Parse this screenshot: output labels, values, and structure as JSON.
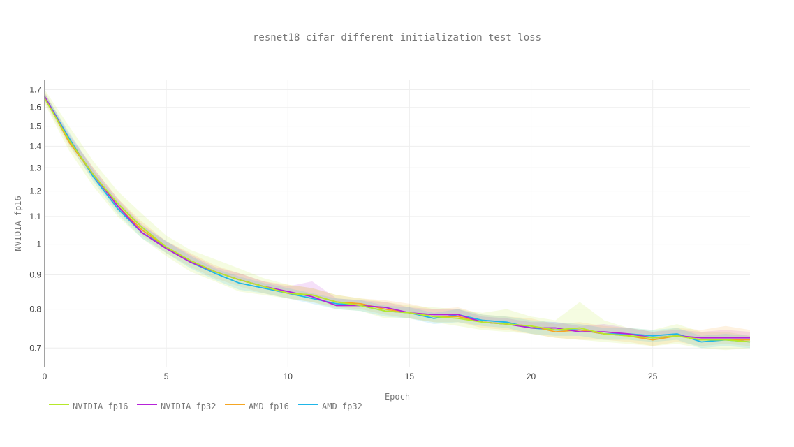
{
  "chart_data": {
    "type": "line",
    "title": "resnet18_cifar_different_initialization_test_loss",
    "xlabel": "Epoch",
    "ylabel": "NVIDIA fp16",
    "y_scale": "log",
    "xlim": [
      0,
      29
    ],
    "ylim": [
      0.655,
      1.76
    ],
    "x_ticks": [
      0,
      5,
      10,
      15,
      20,
      25
    ],
    "y_ticks": [
      0.7,
      0.8,
      0.9,
      1,
      1.1,
      1.2,
      1.3,
      1.4,
      1.5,
      1.6,
      1.7
    ],
    "y_tick_labels": [
      "0.7",
      "0.8",
      "0.9",
      "1",
      "1.1",
      "1.2",
      "1.3",
      "1.4",
      "1.5",
      "1.6",
      "1.7"
    ],
    "grid": true,
    "legend_position": "bottom-left",
    "x": [
      0,
      1,
      2,
      3,
      4,
      5,
      6,
      7,
      8,
      9,
      10,
      11,
      12,
      13,
      14,
      15,
      16,
      17,
      18,
      19,
      20,
      21,
      22,
      23,
      24,
      25,
      26,
      27,
      28,
      29
    ],
    "series": [
      {
        "name": "NVIDIA fp16",
        "color": "#b6e82a",
        "values": [
          1.65,
          1.43,
          1.27,
          1.15,
          1.06,
          0.99,
          0.945,
          0.91,
          0.885,
          0.865,
          0.845,
          0.84,
          0.82,
          0.81,
          0.795,
          0.79,
          0.78,
          0.775,
          0.765,
          0.76,
          0.755,
          0.745,
          0.75,
          0.735,
          0.73,
          0.725,
          0.73,
          0.72,
          0.72,
          0.715
        ],
        "upper": [
          1.7,
          1.5,
          1.33,
          1.2,
          1.11,
          1.03,
          0.98,
          0.95,
          0.92,
          0.89,
          0.87,
          0.86,
          0.84,
          0.83,
          0.82,
          0.81,
          0.805,
          0.8,
          0.79,
          0.8,
          0.78,
          0.77,
          0.82,
          0.77,
          0.75,
          0.745,
          0.76,
          0.74,
          0.74,
          0.73
        ],
        "lower": [
          1.62,
          1.38,
          1.22,
          1.1,
          1.02,
          0.96,
          0.91,
          0.88,
          0.85,
          0.84,
          0.83,
          0.82,
          0.8,
          0.795,
          0.775,
          0.775,
          0.765,
          0.755,
          0.745,
          0.74,
          0.735,
          0.725,
          0.72,
          0.715,
          0.71,
          0.705,
          0.71,
          0.7,
          0.695,
          0.7
        ]
      },
      {
        "name": "NVIDIA fp32",
        "color": "#b622d8",
        "values": [
          1.66,
          1.43,
          1.27,
          1.14,
          1.04,
          0.985,
          0.94,
          0.91,
          0.885,
          0.865,
          0.85,
          0.835,
          0.81,
          0.81,
          0.805,
          0.79,
          0.785,
          0.785,
          0.765,
          0.76,
          0.75,
          0.75,
          0.74,
          0.74,
          0.735,
          0.725,
          0.73,
          0.725,
          0.725,
          0.725
        ],
        "upper": [
          1.68,
          1.46,
          1.3,
          1.17,
          1.07,
          1.01,
          0.965,
          0.925,
          0.905,
          0.88,
          0.865,
          0.88,
          0.83,
          0.825,
          0.82,
          0.805,
          0.8,
          0.8,
          0.78,
          0.775,
          0.765,
          0.765,
          0.755,
          0.76,
          0.75,
          0.74,
          0.745,
          0.74,
          0.745,
          0.74
        ]
      },
      {
        "name": "AMD fp16",
        "color": "#f5a623",
        "values": [
          1.66,
          1.42,
          1.27,
          1.14,
          1.05,
          0.99,
          0.945,
          0.91,
          0.885,
          0.865,
          0.845,
          0.84,
          0.82,
          0.815,
          0.8,
          0.79,
          0.78,
          0.78,
          0.765,
          0.76,
          0.755,
          0.74,
          0.745,
          0.735,
          0.73,
          0.72,
          0.73,
          0.72,
          0.72,
          0.72
        ],
        "upper": [
          1.69,
          1.45,
          1.3,
          1.17,
          1.08,
          1.01,
          0.97,
          0.93,
          0.905,
          0.88,
          0.87,
          0.86,
          0.84,
          0.83,
          0.825,
          0.815,
          0.8,
          0.805,
          0.785,
          0.78,
          0.775,
          0.76,
          0.765,
          0.755,
          0.75,
          0.74,
          0.75,
          0.745,
          0.755,
          0.745
        ],
        "lower": [
          1.63,
          1.4,
          1.25,
          1.12,
          1.03,
          0.97,
          0.925,
          0.89,
          0.865,
          0.845,
          0.83,
          0.82,
          0.805,
          0.8,
          0.785,
          0.775,
          0.765,
          0.765,
          0.75,
          0.745,
          0.735,
          0.725,
          0.72,
          0.72,
          0.715,
          0.705,
          0.715,
          0.705,
          0.71,
          0.705
        ]
      },
      {
        "name": "AMD fp32",
        "color": "#1fb6e8",
        "values": [
          1.66,
          1.44,
          1.26,
          1.13,
          1.04,
          0.99,
          0.94,
          0.905,
          0.875,
          0.86,
          0.845,
          0.83,
          0.815,
          0.81,
          0.795,
          0.79,
          0.775,
          0.785,
          0.77,
          0.765,
          0.75,
          0.745,
          0.745,
          0.735,
          0.735,
          0.73,
          0.735,
          0.715,
          0.72,
          0.715
        ],
        "upper": [
          1.68,
          1.47,
          1.29,
          1.16,
          1.065,
          1.01,
          0.96,
          0.92,
          0.895,
          0.875,
          0.86,
          0.845,
          0.83,
          0.825,
          0.81,
          0.805,
          0.79,
          0.8,
          0.785,
          0.78,
          0.77,
          0.765,
          0.76,
          0.75,
          0.75,
          0.745,
          0.75,
          0.73,
          0.735,
          0.73
        ],
        "lower": [
          1.64,
          1.41,
          1.24,
          1.11,
          1.02,
          0.97,
          0.92,
          0.885,
          0.855,
          0.845,
          0.83,
          0.815,
          0.8,
          0.795,
          0.78,
          0.775,
          0.76,
          0.765,
          0.755,
          0.75,
          0.735,
          0.73,
          0.73,
          0.72,
          0.72,
          0.715,
          0.72,
          0.7,
          0.705,
          0.7
        ]
      }
    ]
  }
}
